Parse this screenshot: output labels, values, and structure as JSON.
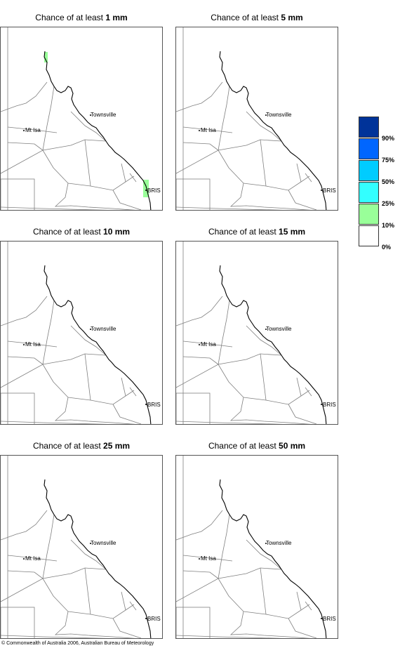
{
  "panels": [
    {
      "title_prefix": "Chance of at least ",
      "amount": "1 mm"
    },
    {
      "title_prefix": "Chance of at least ",
      "amount": "5 mm"
    },
    {
      "title_prefix": "Chance of at least ",
      "amount": "10 mm"
    },
    {
      "title_prefix": "Chance of at least ",
      "amount": "15 mm"
    },
    {
      "title_prefix": "Chance of at least ",
      "amount": "25 mm"
    },
    {
      "title_prefix": "Chance of at least ",
      "amount": "50 mm"
    }
  ],
  "places": {
    "townsville": "Townsville",
    "mt_isa": "Mt Isa",
    "bris": "BRIS"
  },
  "legend": {
    "colors": [
      "#003399",
      "#0066ff",
      "#00ccff",
      "#33ffff",
      "#99ff99",
      "#ffffff"
    ],
    "ticks": [
      "90%",
      "75%",
      "50%",
      "25%",
      "10%",
      "0%"
    ]
  },
  "colors": {
    "shading_10_25": "#99ff99",
    "coast": "#000000",
    "borders": "#808080"
  },
  "copyright": "© Commonwealth of Australia 2006, Australian Bureau of Meteorology"
}
